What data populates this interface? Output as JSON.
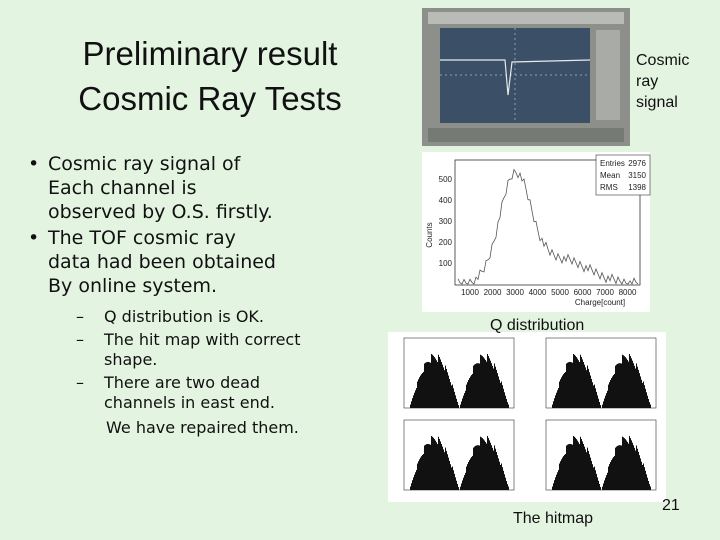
{
  "title": [
    "Preliminary result",
    "Cosmic Ray Tests"
  ],
  "bullets": [
    [
      "Cosmic ray signal of",
      "Each channel is",
      "observed by O.S. firstly."
    ],
    [
      "The TOF cosmic ray",
      "data had been obtained",
      "By online system."
    ]
  ],
  "subbullets": [
    [
      "Q distribution is OK."
    ],
    [
      "The hit map with correct",
      "shape."
    ],
    [
      "There are two dead",
      "channels in east end."
    ]
  ],
  "note": "We have repaired them.",
  "scope_label": [
    "Cosmic",
    "ray",
    "signal"
  ],
  "histogram": {
    "stats": [
      [
        "Entries",
        "2976"
      ],
      [
        "Mean",
        "3150"
      ],
      [
        "RMS",
        "1398"
      ]
    ],
    "yticks": [
      "500",
      "400",
      "300",
      "200",
      "100"
    ],
    "xticks": [
      "1000",
      "2000",
      "3000",
      "4000",
      "5000",
      "6000",
      "7000",
      "8000"
    ],
    "ylabel": "Counts",
    "xlabel": "Charge[count]",
    "caption": "Q distribution"
  },
  "hitmap_caption": "The hitmap",
  "page_number": "21"
}
